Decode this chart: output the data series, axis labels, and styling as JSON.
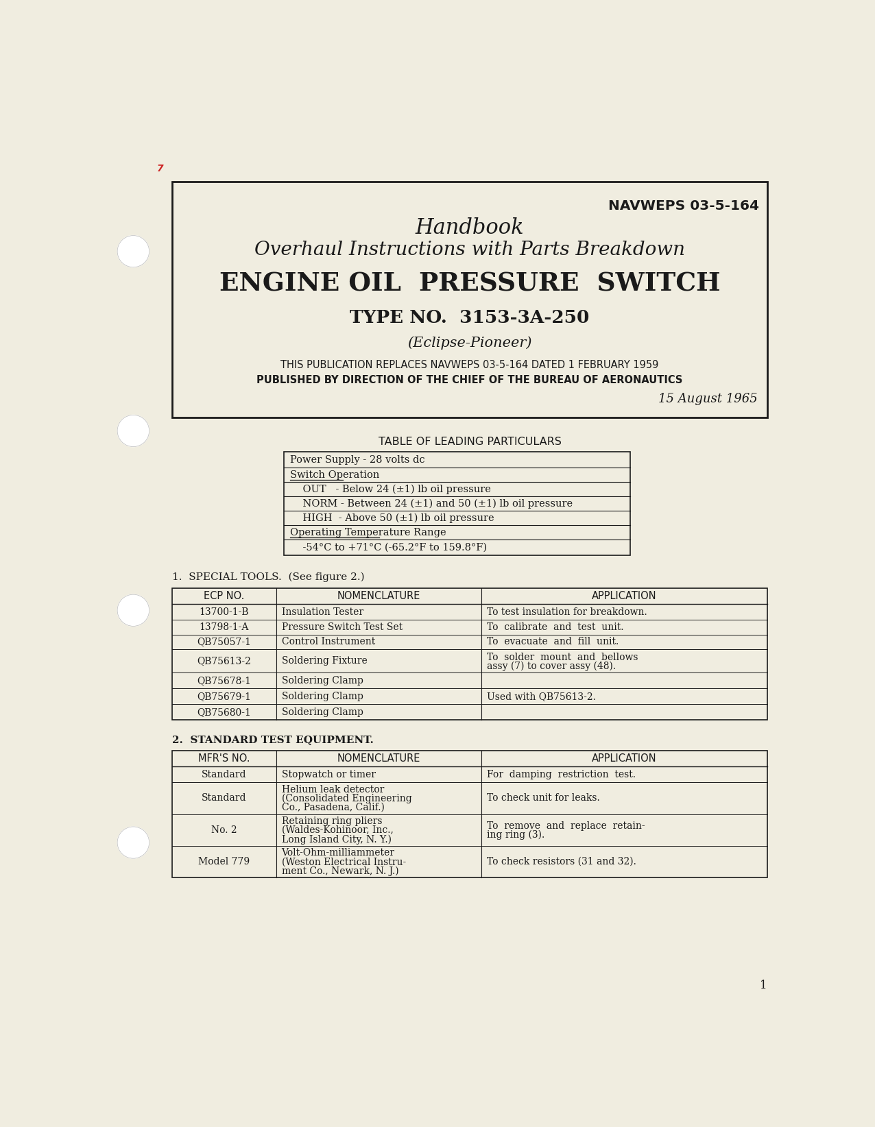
{
  "bg_color": "#f0ede0",
  "text_color": "#1a1a1a",
  "border_color": "#1a1a1a",
  "navweps": "NAVWEPS 03-5-164",
  "title1": "Handbook",
  "title2": "Overhaul Instructions with Parts Breakdown",
  "title3": "ENGINE OIL  PRESSURE  SWITCH",
  "title4": "TYPE NO.  3153-3A-250",
  "title5": "(Eclipse-Pioneer)",
  "pub_line1": "THIS PUBLICATION REPLACES NAVWEPS 03-5-164 DATED 1 FEBRUARY 1959",
  "pub_line2": "PUBLISHED BY DIRECTION OF THE CHIEF OF THE BUREAU OF AERONAUTICS",
  "pub_date": "15 August 1965",
  "table1_title": "TABLE OF LEADING PARTICULARS",
  "section1_title": "1.  SPECIAL TOOLS.  (See figure 2.)",
  "tools_headers": [
    "ECP NO.",
    "NOMENCLATURE",
    "APPLICATION"
  ],
  "tools_rows": [
    [
      "13700-1-B",
      "Insulation Tester",
      "To test insulation for breakdown."
    ],
    [
      "13798-1-A",
      "Pressure Switch Test Set",
      "To  calibrate  and  test  unit."
    ],
    [
      "QB75057-1",
      "Control Instrument",
      "To  evacuate  and  fill  unit."
    ],
    [
      "QB75613-2",
      "Soldering Fixture",
      "To  solder  mount  and  bellows\nassy (7) to cover assy (48)."
    ],
    [
      "QB75678-1",
      "Soldering Clamp",
      ""
    ],
    [
      "QB75679-1",
      "Soldering Clamp",
      "Used with QB75613-2."
    ],
    [
      "QB75680-1",
      "Soldering Clamp",
      ""
    ]
  ],
  "section2_title": "2.  STANDARD TEST EQUIPMENT.",
  "equip_headers": [
    "MFR'S NO.",
    "NOMENCLATURE",
    "APPLICATION"
  ],
  "equip_rows": [
    [
      "Standard",
      "Stopwatch or timer",
      "For  damping  restriction  test."
    ],
    [
      "Standard",
      "Helium leak detector\n(Consolidated Engineering\nCo., Pasadena, Calif.)",
      "To check unit for leaks."
    ],
    [
      "No. 2",
      "Retaining ring pliers\n(Waldes-Kohinoor, Inc.,\nLong Island City, N. Y.)",
      "To  remove  and  replace  retain-\ning ring (3)."
    ],
    [
      "Model 779",
      "Volt-Ohm-milliammeter\n(Weston Electrical Instru-\nment Co., Newark, N. J.)",
      "To check resistors (31 and 32)."
    ]
  ],
  "page_number": "1"
}
